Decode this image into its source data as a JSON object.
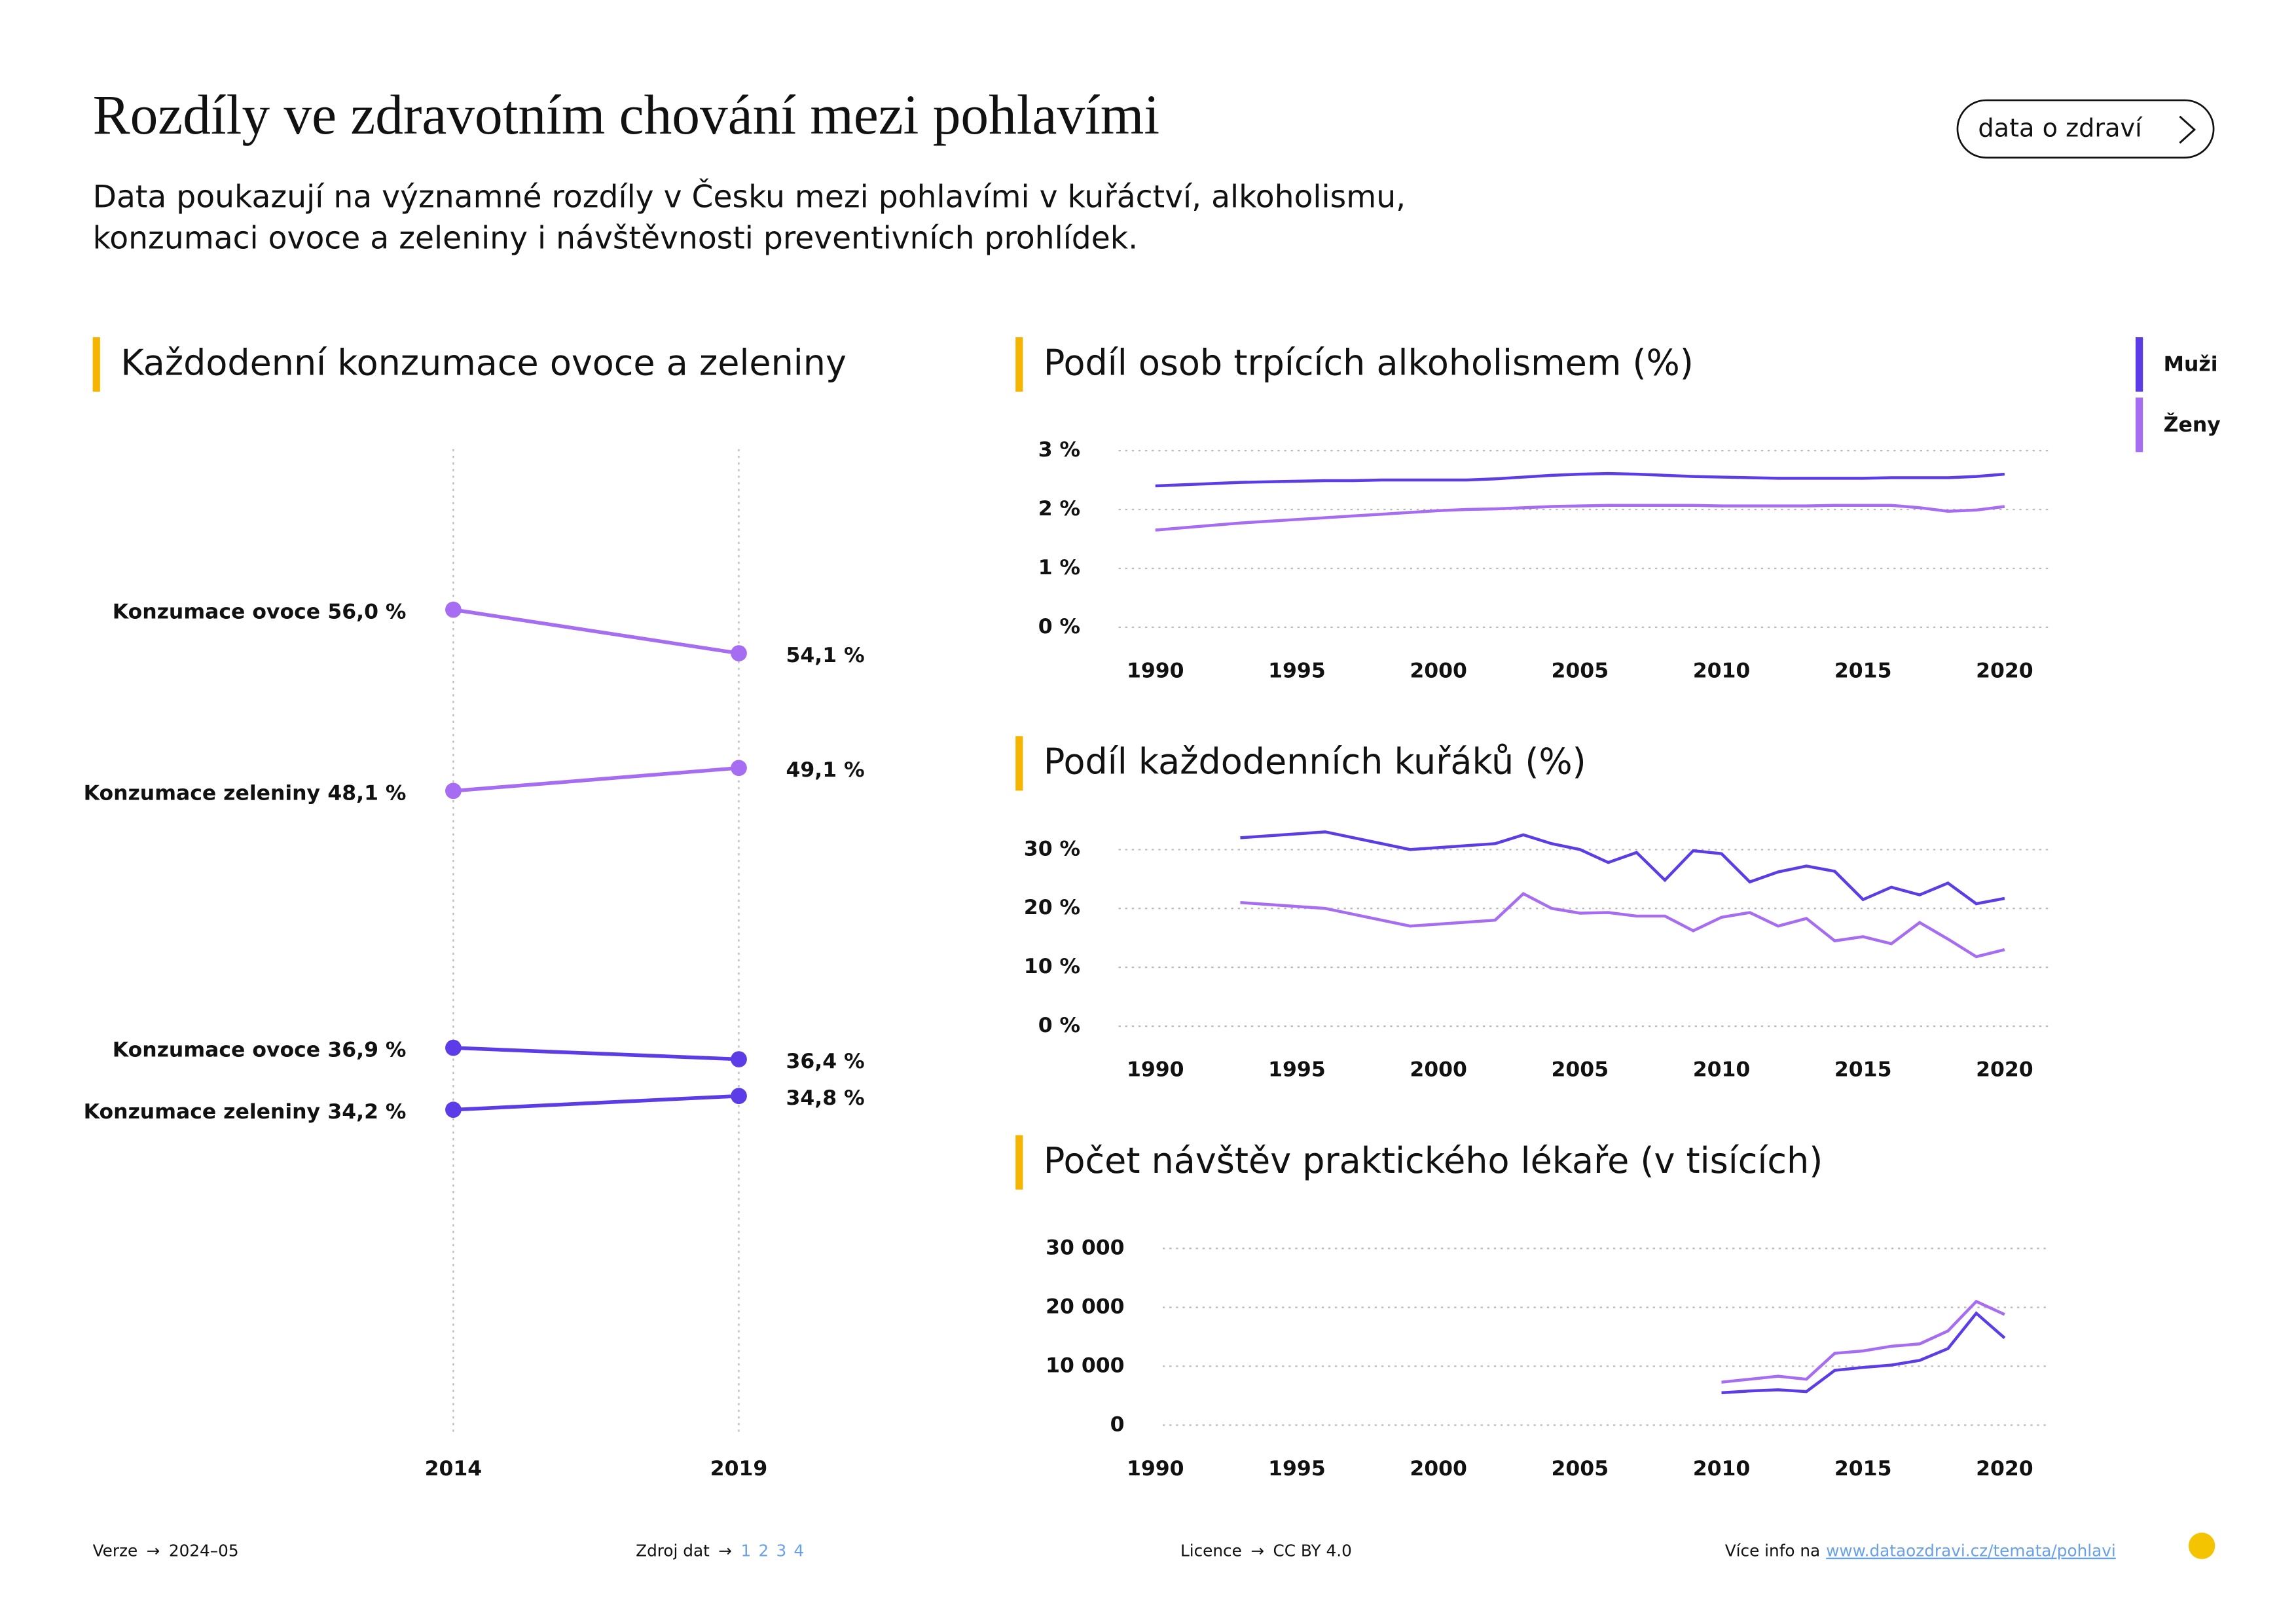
{
  "title": "Rozdíly ve zdravotním chování mezi pohlavími",
  "subtitle": [
    "Data poukazují na významné rozdíly v Česku mezi pohlavími v kuřáctví, alkoholismu,",
    "konzumaci ovoce a zeleniny i návštěvnosti preventivních prohlídek."
  ],
  "button": "data o zdraví",
  "footer": {
    "version_label": "Verze",
    "version": "2024–05",
    "source_label": "Zdroj dat",
    "sources": [
      "1",
      "2",
      "3",
      "4"
    ],
    "license_label": "Licence",
    "license": "CC BY 4.0",
    "info_label": "Více info na",
    "info_url": "www.dataozdravi.cz/temata/pohlavi"
  },
  "chart_data": [
    {
      "type": "slope",
      "title": "Každodenní konzumace ovoce a zeleniny",
      "categories": [
        "2014",
        "2019"
      ],
      "ylim": [
        20,
        63
      ],
      "series": [
        {
          "name": "Konzumace ovoce",
          "color": "#a66cf2",
          "values": [
            56.0,
            54.1
          ],
          "value_labels": [
            "56,0 %",
            "54,1 %"
          ]
        },
        {
          "name": "Konzumace zeleniny",
          "color": "#a66cf2",
          "values": [
            48.1,
            49.1
          ],
          "value_labels": [
            "48,1 %",
            "49,1 %"
          ]
        },
        {
          "name": "Konzumace ovoce",
          "color": "#5b3ce6",
          "values": [
            36.9,
            36.4
          ],
          "value_labels": [
            "36,9 %",
            "36,4 %"
          ]
        },
        {
          "name": "Konzumace zeleniny",
          "color": "#5b3ce6",
          "values": [
            34.2,
            34.8
          ],
          "value_labels": [
            "34,2 %",
            "34,8 %"
          ]
        }
      ]
    },
    {
      "type": "line",
      "title": "Podíl osob trpících alkoholismem (%)",
      "x": [
        1990,
        1991,
        1992,
        1993,
        1994,
        1995,
        1996,
        1997,
        1998,
        1999,
        2000,
        2001,
        2002,
        2003,
        2004,
        2005,
        2006,
        2007,
        2008,
        2009,
        2010,
        2011,
        2012,
        2013,
        2014,
        2015,
        2016,
        2017,
        2018,
        2019,
        2020
      ],
      "xlim": [
        1990,
        2020
      ],
      "xticks": [
        1990,
        1995,
        2000,
        2005,
        2010,
        2015,
        2020
      ],
      "ylim": [
        0,
        3
      ],
      "yticks": [
        {
          "value": 0,
          "label": "0 %"
        },
        {
          "value": 1,
          "label": "1 %"
        },
        {
          "value": 2,
          "label": "2 %"
        },
        {
          "value": 3,
          "label": "3 %"
        }
      ],
      "grid": true,
      "series": [
        {
          "name": "Muži",
          "color": "#5b3ce6",
          "values": [
            2.4,
            2.42,
            2.44,
            2.46,
            2.47,
            2.48,
            2.49,
            2.49,
            2.5,
            2.5,
            2.5,
            2.5,
            2.52,
            2.55,
            2.58,
            2.6,
            2.61,
            2.6,
            2.58,
            2.56,
            2.55,
            2.54,
            2.53,
            2.53,
            2.53,
            2.53,
            2.54,
            2.54,
            2.54,
            2.56,
            2.6
          ]
        },
        {
          "name": "Ženy",
          "color": "#a66cf2",
          "values": [
            1.65,
            1.69,
            1.73,
            1.77,
            1.8,
            1.83,
            1.86,
            1.89,
            1.92,
            1.95,
            1.98,
            2.0,
            2.01,
            2.03,
            2.05,
            2.06,
            2.07,
            2.07,
            2.07,
            2.07,
            2.06,
            2.06,
            2.06,
            2.06,
            2.07,
            2.07,
            2.07,
            2.03,
            1.97,
            1.99,
            2.05
          ]
        }
      ]
    },
    {
      "type": "line",
      "title": "Podíl každodenních kuřáků (%)",
      "x": [
        1993,
        1996,
        1999,
        2002,
        2003,
        2004,
        2005,
        2006,
        2007,
        2008,
        2009,
        2010,
        2011,
        2012,
        2013,
        2014,
        2015,
        2016,
        2017,
        2018,
        2019,
        2020
      ],
      "xlim": [
        1990,
        2020
      ],
      "xticks": [
        1990,
        1995,
        2000,
        2005,
        2010,
        2015,
        2020
      ],
      "ylim": [
        0,
        30
      ],
      "yticks": [
        {
          "value": 0,
          "label": "0 %"
        },
        {
          "value": 10,
          "label": "10 %"
        },
        {
          "value": 20,
          "label": "20 %"
        },
        {
          "value": 30,
          "label": "30 %"
        }
      ],
      "grid": true,
      "series": [
        {
          "name": "Muži",
          "color": "#5b3ce6",
          "values": [
            32,
            33,
            30,
            31,
            32.5,
            31,
            30,
            27.8,
            29.5,
            24.8,
            29.8,
            29.3,
            24.5,
            26.2,
            27.2,
            26.3,
            21.5,
            23.6,
            22.3,
            24.3,
            20.8,
            21.7
          ]
        },
        {
          "name": "Ženy",
          "color": "#a66cf2",
          "values": [
            21,
            20,
            17,
            18,
            22.5,
            20,
            19.2,
            19.3,
            18.7,
            18.7,
            16.2,
            18.5,
            19.3,
            17,
            18.3,
            14.5,
            15.2,
            14,
            17.6,
            14.8,
            11.8,
            13
          ]
        }
      ]
    },
    {
      "type": "line",
      "title": "Počet návštěv praktického lékaře (v tisících)",
      "x": [
        2010,
        2011,
        2012,
        2013,
        2014,
        2015,
        2016,
        2017,
        2018,
        2019,
        2020
      ],
      "xlim": [
        1990,
        2020
      ],
      "xticks": [
        1990,
        1995,
        2000,
        2005,
        2010,
        2015,
        2020
      ],
      "ylim": [
        0,
        30000
      ],
      "yticks": [
        0,
        {
          "value": 10000,
          "label": "10 000"
        },
        {
          "value": 20000,
          "label": "20 000"
        },
        {
          "value": 30000,
          "label": "30 000"
        }
      ],
      "grid": true,
      "series": [
        {
          "name": "Muži",
          "color": "#5b3ce6",
          "values": [
            5500,
            5800,
            6000,
            5700,
            9300,
            9800,
            10200,
            11000,
            13000,
            19000,
            14800
          ]
        },
        {
          "name": "Ženy",
          "color": "#a66cf2",
          "values": [
            7300,
            7800,
            8300,
            7800,
            12200,
            12600,
            13400,
            13800,
            16000,
            21000,
            18800
          ]
        }
      ]
    }
  ]
}
